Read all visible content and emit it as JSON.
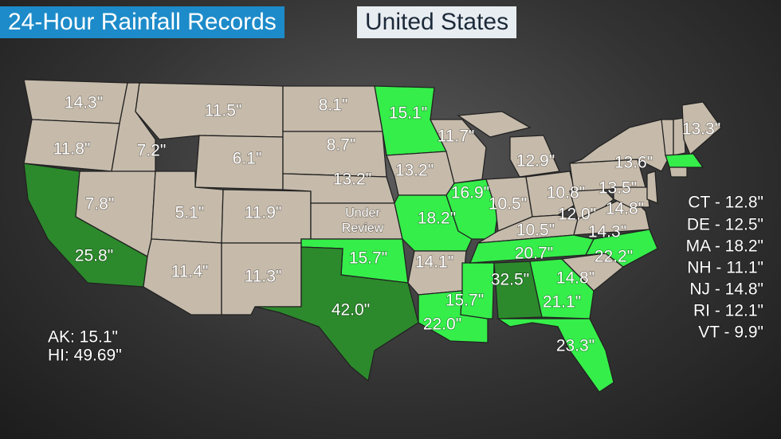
{
  "header": {
    "title": "24-Hour Rainfall Records",
    "subtitle": "United States"
  },
  "map_labels": [
    "14.3\"",
    "11.8\"",
    "25.8\"",
    "7.2\"",
    "7.8\"",
    "11.5\"",
    "6.1\"",
    "5.1\"",
    "11.4\"",
    "11.9\"",
    "11.3\"",
    "8.1\"",
    "8.7\"",
    "13.2\"",
    "Under",
    "Review",
    "15.7\"",
    "42.0\"",
    "15.1\"",
    "13.2\"",
    "18.2\"",
    "14.1\"",
    "22.0\"",
    "11.7\"",
    "16.9\"",
    "12.9\"",
    "10.5\"",
    "10.8\"",
    "10.5\"",
    "12.0\"",
    "13.5\"",
    "14.8\"",
    "14.3\"",
    "15.7\"",
    "32.5\"",
    "20.7\"",
    "21.1\"",
    "14.8\"",
    "22.2\"",
    "23.3\"",
    "13.6\"",
    "13.3\""
  ],
  "other_states": [
    "AK: 15.1\"",
    "HI: 49.69\""
  ],
  "small_states": [
    "CT - 12.8\"",
    "DE - 12.5\"",
    "MA - 18.2\"",
    "NH - 11.1\"",
    "NJ - 14.8\"",
    "RI - 12.1\"",
    "VT - 9.9\""
  ]
}
